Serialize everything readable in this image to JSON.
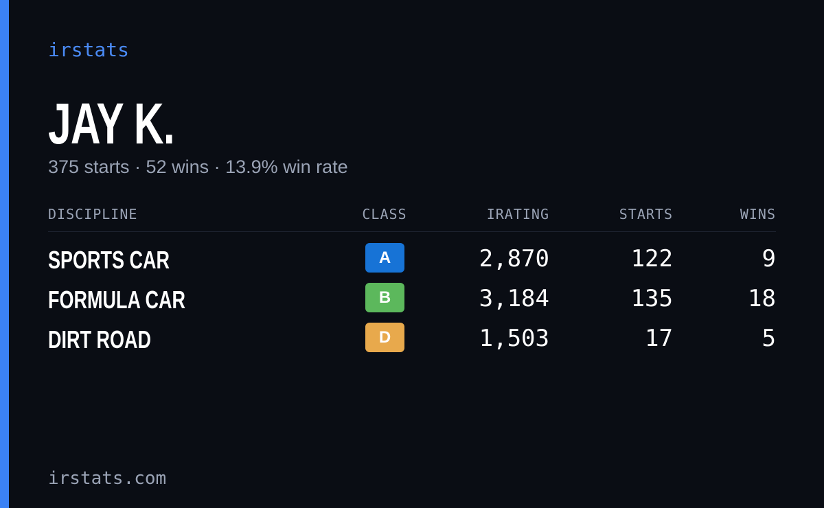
{
  "brand": "irstats",
  "driver": {
    "name": "JAY K.",
    "summary": "375 starts · 52 wins · 13.9% win rate"
  },
  "table": {
    "headers": [
      "DISCIPLINE",
      "CLASS",
      "IRATING",
      "STARTS",
      "WINS"
    ],
    "rows": [
      {
        "discipline": "SPORTS CAR",
        "class": "A",
        "class_color": "#1773d6",
        "irating": "2,870",
        "starts": "122",
        "wins": "9"
      },
      {
        "discipline": "FORMULA CAR",
        "class": "B",
        "class_color": "#5cb85c",
        "irating": "3,184",
        "starts": "135",
        "wins": "18"
      },
      {
        "discipline": "DIRT ROAD",
        "class": "D",
        "class_color": "#e8a94c",
        "irating": "1,503",
        "starts": "17",
        "wins": "5"
      }
    ]
  },
  "footer": "irstats.com"
}
